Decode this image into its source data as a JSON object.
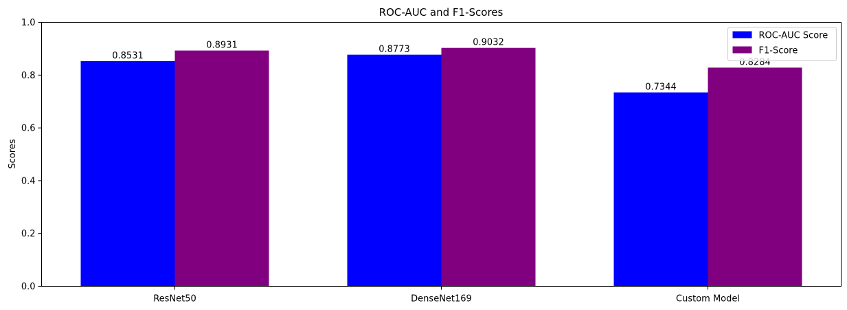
{
  "chart_data": {
    "type": "bar",
    "title": "ROC-AUC and F1-Scores",
    "xlabel": "",
    "ylabel": "Scores",
    "categories": [
      "ResNet50",
      "DenseNet169",
      "Custom Model"
    ],
    "series": [
      {
        "name": "ROC-AUC Score",
        "color": "#0000ff",
        "values": [
          0.8531,
          0.8773,
          0.7344
        ],
        "labels": [
          "0.8531",
          "0.8773",
          "0.7344"
        ]
      },
      {
        "name": "F1-Score",
        "color": "#800080",
        "values": [
          0.8931,
          0.9032,
          0.8284
        ],
        "labels": [
          "0.8931",
          "0.9032",
          "0.8284"
        ]
      }
    ],
    "ylim": [
      0,
      1.0
    ],
    "yticks": [
      0.0,
      0.2,
      0.4,
      0.6,
      0.8,
      1.0
    ],
    "ytick_labels": [
      "0.0",
      "0.2",
      "0.4",
      "0.6",
      "0.8",
      "1.0"
    ],
    "grid": false,
    "legend_position": "top-right"
  }
}
